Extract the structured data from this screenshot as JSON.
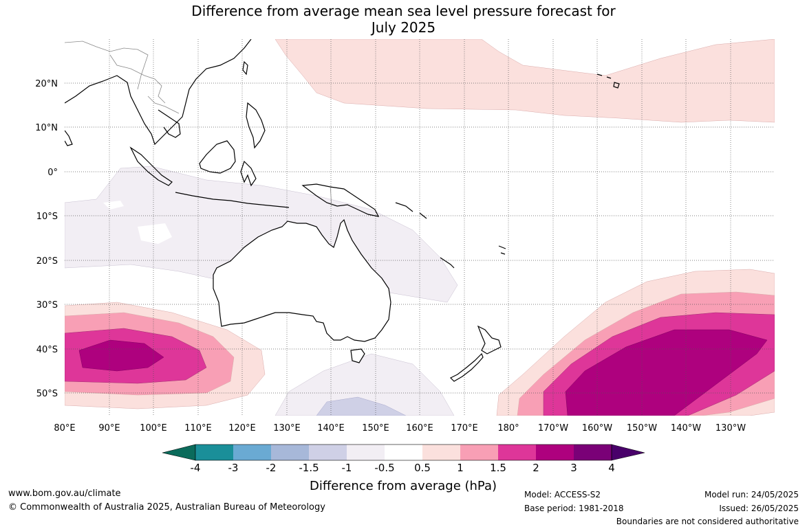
{
  "title": {
    "line1": "Difference from average mean sea level pressure forecast for",
    "line2": "July 2025"
  },
  "map": {
    "lon_labels": [
      "80°E",
      "90°E",
      "100°E",
      "110°E",
      "120°E",
      "130°E",
      "140°E",
      "150°E",
      "160°E",
      "170°E",
      "180°",
      "170°W",
      "160°W",
      "150°W",
      "140°W",
      "130°W"
    ],
    "lat_labels": [
      "20°N",
      "10°N",
      "0°",
      "10°S",
      "20°S",
      "30°S",
      "40°S",
      "50°S"
    ],
    "colors": {
      "land_outline": "#000000",
      "gridline": "#555555",
      "neg_0_5": "#f2eef4",
      "neg_1": "#cfd0e6",
      "pos_0_5": "#fbe0dd",
      "pos_1": "#f89fb5",
      "pos_1_5": "#de3699",
      "pos_2": "#ae017e"
    }
  },
  "colorbar": {
    "tick_labels": [
      "-4",
      "-3",
      "-2",
      "-1.5",
      "-1",
      "-0.5",
      "0.5",
      "1",
      "1.5",
      "2",
      "3",
      "4"
    ],
    "colors": [
      "#0b6b5b",
      "#1a8f99",
      "#6aaad3",
      "#a7b8d9",
      "#cfd0e6",
      "#f2eef4",
      "#ffffff",
      "#fbe0dd",
      "#f89fb5",
      "#de3699",
      "#ae017e",
      "#7a0177",
      "#49006a"
    ],
    "label": "Difference from average (hPa)"
  },
  "footer": {
    "website": "www.bom.gov.au/climate",
    "copyright": "© Commonwealth of Australia 2025, Australian Bureau of Meteorology",
    "model": "Model: ACCESS-S2",
    "base_period": "Base period: 1981-2018",
    "model_run": "Model run: 24/05/2025",
    "issued": "Issued: 26/05/2025",
    "disclaimer": "Boundaries are not considered authoritative"
  }
}
